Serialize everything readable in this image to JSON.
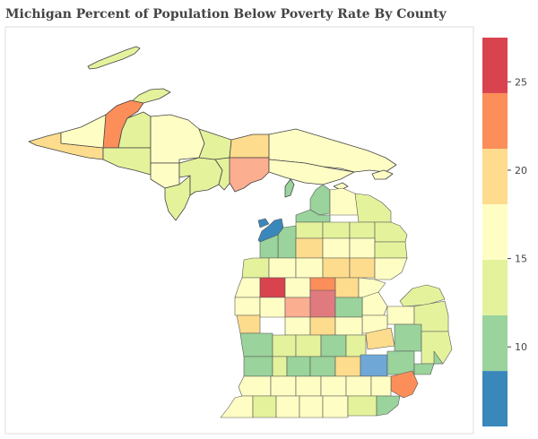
{
  "title": "Michigan Percent of Population Below Poverty Rate By County",
  "colorbar": {
    "min": 5.5,
    "max": 27.5,
    "ticks": [
      {
        "value": 10,
        "label": "10"
      },
      {
        "value": 15,
        "label": "15"
      },
      {
        "value": 20,
        "label": "20"
      },
      {
        "value": 25,
        "label": "25"
      }
    ],
    "bands": [
      {
        "from": 5.5,
        "to": 8.64,
        "color": "#3a87bc"
      },
      {
        "from": 8.64,
        "to": 11.79,
        "color": "#9ad39b"
      },
      {
        "from": 11.79,
        "to": 14.93,
        "color": "#e4f29c"
      },
      {
        "from": 14.93,
        "to": 18.07,
        "color": "#fefec4"
      },
      {
        "from": 18.07,
        "to": 21.21,
        "color": "#fddc8d"
      },
      {
        "from": 21.21,
        "to": 24.36,
        "color": "#fb8e59"
      },
      {
        "from": 24.36,
        "to": 27.5,
        "color": "#d9434e"
      }
    ]
  },
  "colors": {
    "outline": "#333333",
    "frame": "#dddddd",
    "background": "#ffffff"
  }
}
